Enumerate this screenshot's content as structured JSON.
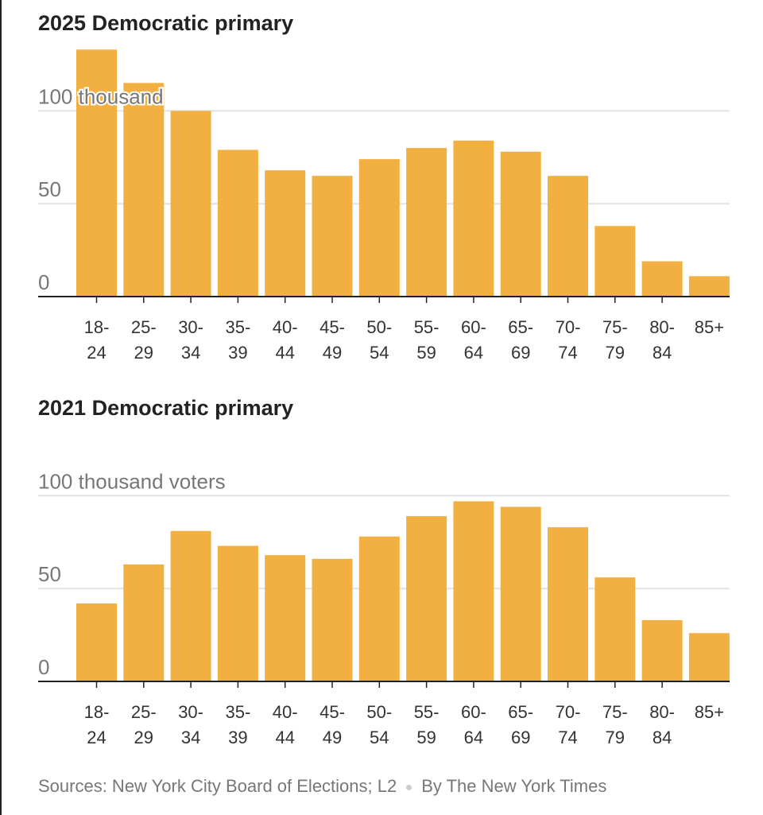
{
  "colors": {
    "bar": "#f3b042",
    "grid": "#e2e2e2",
    "axis": "#222222",
    "label": "#777777"
  },
  "chart_data": [
    {
      "type": "bar",
      "title": "2025 Democratic primary",
      "unit_label": "100 thousand",
      "categories": [
        "18-24",
        "25-29",
        "30-34",
        "35-39",
        "40-44",
        "45-49",
        "50-54",
        "55-59",
        "60-64",
        "65-69",
        "70-74",
        "75-79",
        "80-84",
        "85+"
      ],
      "category_lines": [
        [
          "18-",
          "24"
        ],
        [
          "25-",
          "29"
        ],
        [
          "30-",
          "34"
        ],
        [
          "35-",
          "39"
        ],
        [
          "40-",
          "44"
        ],
        [
          "45-",
          "49"
        ],
        [
          "50-",
          "54"
        ],
        [
          "55-",
          "59"
        ],
        [
          "60-",
          "64"
        ],
        [
          "65-",
          "69"
        ],
        [
          "70-",
          "74"
        ],
        [
          "75-",
          "79"
        ],
        [
          "80-",
          "84"
        ],
        [
          "85+",
          ""
        ]
      ],
      "values": [
        133,
        115,
        100,
        79,
        68,
        65,
        74,
        80,
        84,
        78,
        65,
        38,
        19,
        11
      ],
      "yticks": [
        0,
        50,
        100
      ],
      "ytick_labels": [
        "0",
        "50",
        "100 thousand"
      ],
      "ylim": [
        0,
        133
      ],
      "grid": true
    },
    {
      "type": "bar",
      "title": "2021 Democratic primary",
      "unit_label": "100 thousand voters",
      "categories": [
        "18-24",
        "25-29",
        "30-34",
        "35-39",
        "40-44",
        "45-49",
        "50-54",
        "55-59",
        "60-64",
        "65-69",
        "70-74",
        "75-79",
        "80-84",
        "85+"
      ],
      "category_lines": [
        [
          "18-",
          "24"
        ],
        [
          "25-",
          "29"
        ],
        [
          "30-",
          "34"
        ],
        [
          "35-",
          "39"
        ],
        [
          "40-",
          "44"
        ],
        [
          "45-",
          "49"
        ],
        [
          "50-",
          "54"
        ],
        [
          "55-",
          "59"
        ],
        [
          "60-",
          "64"
        ],
        [
          "65-",
          "69"
        ],
        [
          "70-",
          "74"
        ],
        [
          "75-",
          "79"
        ],
        [
          "80-",
          "84"
        ],
        [
          "85+",
          ""
        ]
      ],
      "values": [
        42,
        63,
        81,
        73,
        68,
        66,
        78,
        89,
        97,
        94,
        83,
        56,
        33,
        26
      ],
      "yticks": [
        0,
        50,
        100
      ],
      "ytick_labels": [
        "0",
        "50",
        "100 thousand voters"
      ],
      "ylim": [
        0,
        100
      ],
      "grid": true
    }
  ],
  "footer": {
    "sources": "Sources: New York City Board of Elections; L2",
    "credit": "By The New York Times"
  }
}
